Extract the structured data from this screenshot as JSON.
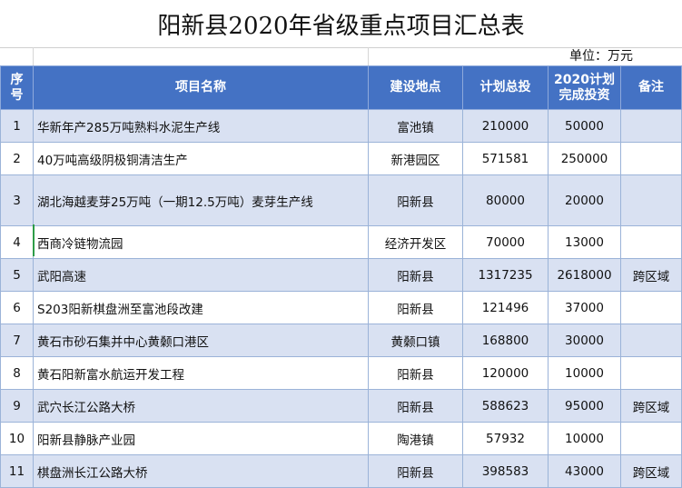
{
  "title": "阳新县2020年省级重点项目汇总表",
  "unit": "单位：万元",
  "headers": {
    "seq": "序\n号",
    "name": "项目名称",
    "location": "建设地点",
    "plan_total": "计划总投",
    "plan_2020": "2020计划\n完成投资",
    "remark": "备注"
  },
  "rows": [
    {
      "seq": "1",
      "name": "华新年产285万吨熟料水泥生产线",
      "location": "富池镇",
      "plan_total": "210000",
      "plan_2020": "50000",
      "remark": ""
    },
    {
      "seq": "2",
      "name": "40万吨高级阴极铜清洁生产",
      "location": "新港园区",
      "plan_total": "571581",
      "plan_2020": "250000",
      "remark": ""
    },
    {
      "seq": "3",
      "name": "湖北海越麦芽25万吨（一期12.5万吨）麦芽生产线",
      "location": "阳新县",
      "plan_total": "80000",
      "plan_2020": "20000",
      "remark": ""
    },
    {
      "seq": "4",
      "name": "西商冷链物流园",
      "location": "经济开发区",
      "plan_total": "70000",
      "plan_2020": "13000",
      "remark": ""
    },
    {
      "seq": "5",
      "name": "武阳高速",
      "location": "阳新县",
      "plan_total": "1317235",
      "plan_2020": "2618000",
      "remark": "跨区域"
    },
    {
      "seq": "6",
      "name": "S203阳新棋盘洲至富池段改建",
      "location": "阳新县",
      "plan_total": "121496",
      "plan_2020": "37000",
      "remark": ""
    },
    {
      "seq": "7",
      "name": "黄石市砂石集并中心黄颡口港区",
      "location": "黄颡口镇",
      "plan_total": "168800",
      "plan_2020": "30000",
      "remark": ""
    },
    {
      "seq": "8",
      "name": "黄石阳新富水航运开发工程",
      "location": "阳新县",
      "plan_total": "120000",
      "plan_2020": "10000",
      "remark": ""
    },
    {
      "seq": "9",
      "name": "武穴长江公路大桥",
      "location": "阳新县",
      "plan_total": "588623",
      "plan_2020": "95000",
      "remark": "跨区域"
    },
    {
      "seq": "10",
      "name": "阳新县静脉产业园",
      "location": "陶港镇",
      "plan_total": "57932",
      "plan_2020": "10000",
      "remark": ""
    },
    {
      "seq": "11",
      "name": "棋盘洲长江公路大桥",
      "location": "阳新县",
      "plan_total": "398583",
      "plan_2020": "43000",
      "remark": "跨区域"
    }
  ]
}
